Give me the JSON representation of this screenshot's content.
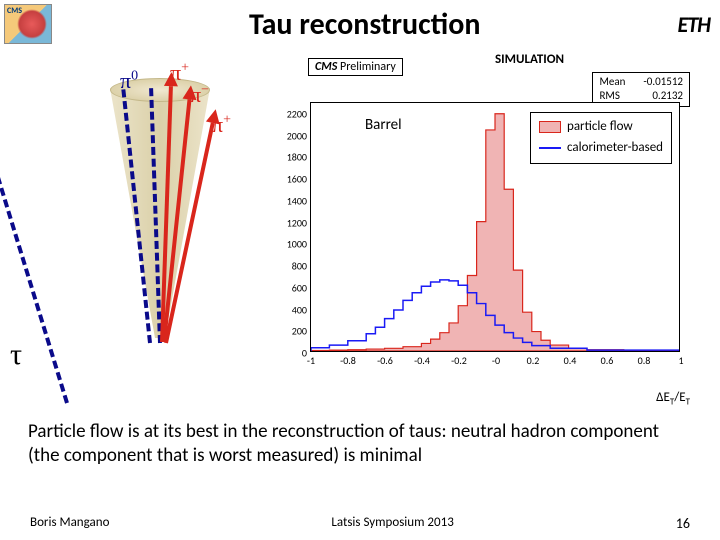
{
  "header": {
    "cms_logo_text": "CMS",
    "title": "Tau reconstruction",
    "eth_logo_text": "ETH"
  },
  "jet": {
    "pi0": "π",
    "pi0_sup": "0",
    "pi_plus": "π",
    "pi_minus": "π",
    "plus": "+",
    "minus": "−",
    "tau": "τ",
    "arrows": {
      "red_color": "#d9261c",
      "blue_dash_color": "#0a0a8a"
    }
  },
  "chart": {
    "header_prefix": "CMS",
    "header_rest": " Preliminary",
    "simulation": "SIMULATION",
    "stats": {
      "mean_label": "Mean",
      "mean_val": "-0.01512",
      "rms_label": "RMS",
      "rms_val": "0.2132"
    },
    "barrel": "Barrel",
    "legend": {
      "pflow": "particle flow",
      "pflow_color": "#d9261c",
      "pflow_fill": "#f0b4b4",
      "calo": "calorimeter-based",
      "calo_color": "#1a1af5"
    },
    "x_limits": [
      -1,
      1
    ],
    "y_limits": [
      0,
      2300
    ],
    "x_ticks": [
      "-1",
      "-0.8",
      "-0.6",
      "-0.4",
      "-0.2",
      "-0",
      "0.2",
      "0.4",
      "0.6",
      "0.8",
      "1"
    ],
    "y_ticks": [
      "0",
      "200",
      "400",
      "600",
      "800",
      "1000",
      "1200",
      "1400",
      "1600",
      "1800",
      "2000",
      "2200"
    ],
    "x_label": "ΔE_T/E_T",
    "pflow_bins": [
      [
        -1.0,
        5
      ],
      [
        -0.9,
        8
      ],
      [
        -0.8,
        12
      ],
      [
        -0.7,
        18
      ],
      [
        -0.6,
        25
      ],
      [
        -0.5,
        40
      ],
      [
        -0.4,
        70
      ],
      [
        -0.35,
        110
      ],
      [
        -0.3,
        170
      ],
      [
        -0.25,
        260
      ],
      [
        -0.2,
        420
      ],
      [
        -0.15,
        700
      ],
      [
        -0.1,
        1200
      ],
      [
        -0.05,
        2050
      ],
      [
        0.0,
        2200
      ],
      [
        0.05,
        1500
      ],
      [
        0.1,
        750
      ],
      [
        0.15,
        360
      ],
      [
        0.2,
        180
      ],
      [
        0.25,
        100
      ],
      [
        0.3,
        55
      ],
      [
        0.4,
        25
      ],
      [
        0.5,
        12
      ],
      [
        0.7,
        4
      ],
      [
        1.0,
        2
      ]
    ],
    "calo_bins": [
      [
        -1.0,
        30
      ],
      [
        -0.9,
        55
      ],
      [
        -0.8,
        95
      ],
      [
        -0.7,
        160
      ],
      [
        -0.65,
        220
      ],
      [
        -0.6,
        300
      ],
      [
        -0.55,
        380
      ],
      [
        -0.5,
        470
      ],
      [
        -0.45,
        540
      ],
      [
        -0.4,
        600
      ],
      [
        -0.35,
        640
      ],
      [
        -0.3,
        660
      ],
      [
        -0.25,
        650
      ],
      [
        -0.2,
        610
      ],
      [
        -0.15,
        540
      ],
      [
        -0.1,
        440
      ],
      [
        -0.05,
        330
      ],
      [
        0.0,
        240
      ],
      [
        0.05,
        170
      ],
      [
        0.1,
        120
      ],
      [
        0.15,
        80
      ],
      [
        0.2,
        50
      ],
      [
        0.3,
        25
      ],
      [
        0.5,
        8
      ],
      [
        1.0,
        2
      ]
    ]
  },
  "body_text": "Particle flow is at its best in the reconstruction of taus: neutral hadron component (the component that is worst measured) is minimal",
  "footer": {
    "author": "Boris Mangano",
    "event": "Latsis Symposium 2013",
    "page": "16"
  }
}
